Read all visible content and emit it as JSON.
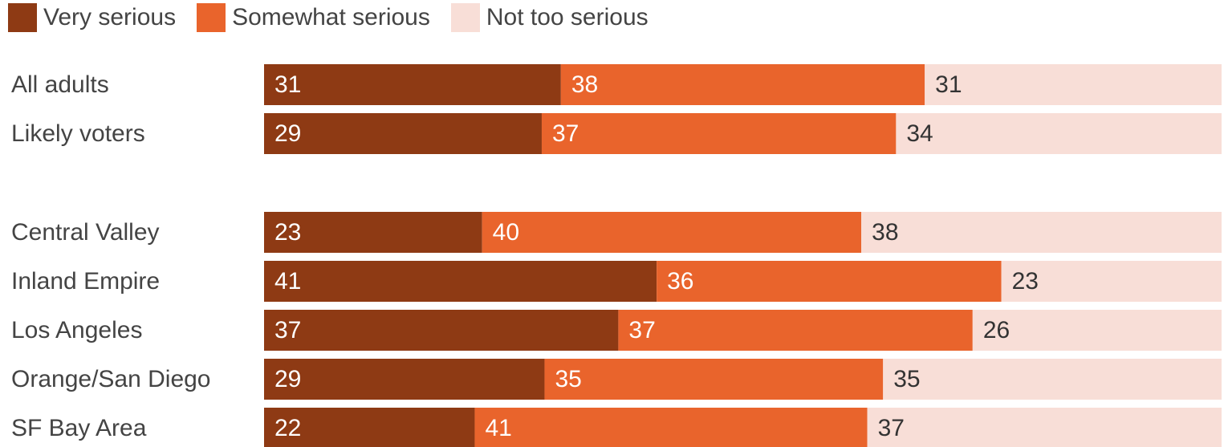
{
  "legend": {
    "items": [
      {
        "label": "Very serious",
        "color": "#8e3a14"
      },
      {
        "label": "Somewhat serious",
        "color": "#e9642c"
      },
      {
        "label": "Not too serious",
        "color": "#f8ded7"
      }
    ]
  },
  "chart_data": {
    "type": "bar",
    "orientation": "horizontal",
    "stacked": true,
    "categories": [
      "All adults",
      "Likely voters",
      "Central Valley",
      "Inland Empire",
      "Los Angeles",
      "Orange/San Diego",
      "SF Bay Area"
    ],
    "series": [
      {
        "name": "Very serious",
        "color": "#8e3a14",
        "label_color": "#ffffff",
        "values": [
          31,
          29,
          23,
          41,
          37,
          29,
          22
        ]
      },
      {
        "name": "Somewhat serious",
        "color": "#e9642c",
        "label_color": "#ffffff",
        "values": [
          38,
          37,
          40,
          36,
          37,
          35,
          41
        ]
      },
      {
        "name": "Not too serious",
        "color": "#f8ded7",
        "label_color": "#333333",
        "values": [
          31,
          34,
          38,
          23,
          26,
          35,
          37
        ]
      }
    ],
    "xlim": [
      0,
      100
    ],
    "grid": false,
    "legend_position": "top-left",
    "data_labels": true
  }
}
